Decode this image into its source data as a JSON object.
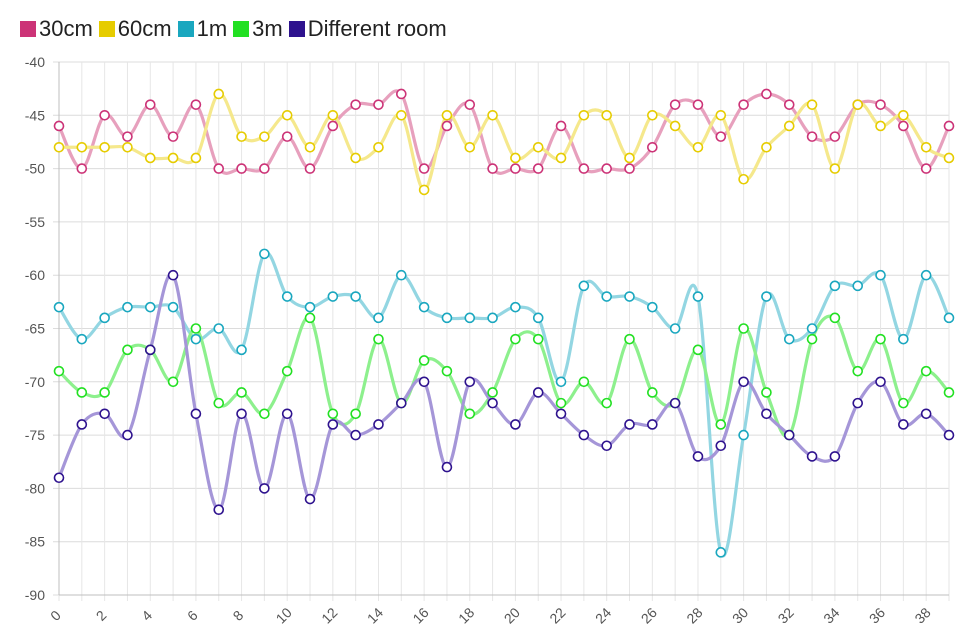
{
  "chart_data": {
    "type": "line",
    "x": [
      0,
      1,
      2,
      3,
      4,
      5,
      6,
      7,
      8,
      9,
      10,
      11,
      12,
      13,
      14,
      15,
      16,
      17,
      18,
      19,
      20,
      21,
      22,
      23,
      24,
      25,
      26,
      27,
      28,
      29,
      30,
      31,
      32,
      33,
      34,
      35,
      36,
      37,
      38,
      39
    ],
    "xticks": [
      0,
      2,
      4,
      6,
      8,
      10,
      12,
      14,
      16,
      18,
      20,
      22,
      24,
      26,
      28,
      30,
      32,
      34,
      36,
      38
    ],
    "yticks": [
      -40,
      -45,
      -50,
      -55,
      -60,
      -65,
      -70,
      -75,
      -80,
      -85,
      -90
    ],
    "ylim": [
      -90,
      -40
    ],
    "xlim": [
      0,
      39
    ],
    "grid": true,
    "legend_position": "top-left",
    "series": [
      {
        "name": "30cm",
        "swatch": "#cc3377",
        "line": "#e7a0bd",
        "marker": "#cc3377",
        "values": [
          -46,
          -50,
          -45,
          -47,
          -44,
          -47,
          -44,
          -50,
          -50,
          -50,
          -47,
          -50,
          -46,
          -44,
          -44,
          -43,
          -50,
          -46,
          -44,
          -50,
          -50,
          -50,
          -46,
          -50,
          -50,
          -50,
          -48,
          -44,
          -44,
          -47,
          -44,
          -43,
          -44,
          -47,
          -47,
          -44,
          -44,
          -46,
          -50,
          -46
        ]
      },
      {
        "name": "60cm",
        "swatch": "#e6cc00",
        "line": "#f5e88c",
        "marker": "#e6cc00",
        "values": [
          -48,
          -48,
          -48,
          -48,
          -49,
          -49,
          -49,
          -43,
          -47,
          -47,
          -45,
          -48,
          -45,
          -49,
          -48,
          -45,
          -52,
          -45,
          -48,
          -45,
          -49,
          -48,
          -49,
          -45,
          -45,
          -49,
          -45,
          -46,
          -48,
          -45,
          -51,
          -48,
          -46,
          -44,
          -50,
          -44,
          -46,
          -45,
          -48,
          -49
        ]
      },
      {
        "name": "1m",
        "swatch": "#1aa7bf",
        "line": "#93d6e2",
        "marker": "#1aa7bf",
        "values": [
          -63,
          -66,
          -64,
          -63,
          -63,
          -63,
          -66,
          -65,
          -67,
          -58,
          -62,
          -63,
          -62,
          -62,
          -64,
          -60,
          -63,
          -64,
          -64,
          -64,
          -63,
          -64,
          -70,
          -61,
          -62,
          -62,
          -63,
          -65,
          -62,
          -86,
          -75,
          -62,
          -66,
          -65,
          -61,
          -61,
          -60,
          -66,
          -60,
          -64
        ]
      },
      {
        "name": "3m",
        "swatch": "#22e022",
        "line": "#8df08d",
        "marker": "#22e022",
        "values": [
          -69,
          -71,
          -71,
          -67,
          -67,
          -70,
          -65,
          -72,
          -71,
          -73,
          -69,
          -64,
          -73,
          -73,
          -66,
          -72,
          -68,
          -69,
          -73,
          -71,
          -66,
          -66,
          -72,
          -70,
          -72,
          -66,
          -71,
          -72,
          -67,
          -74,
          -65,
          -71,
          -75,
          -66,
          -64,
          -69,
          -66,
          -72,
          -69,
          -71
        ]
      },
      {
        "name": "Different room",
        "swatch": "#2e128e",
        "line": "#a596d8",
        "marker": "#2e128e",
        "values": [
          -79,
          -74,
          -73,
          -75,
          -67,
          -60,
          -73,
          -82,
          -73,
          -80,
          -73,
          -81,
          -74,
          -75,
          -74,
          -72,
          -70,
          -78,
          -70,
          -72,
          -74,
          -71,
          -73,
          -75,
          -76,
          -74,
          -74,
          -72,
          -77,
          -76,
          -70,
          -73,
          -75,
          -77,
          -77,
          -72,
          -70,
          -74,
          -73,
          -75
        ]
      }
    ]
  }
}
